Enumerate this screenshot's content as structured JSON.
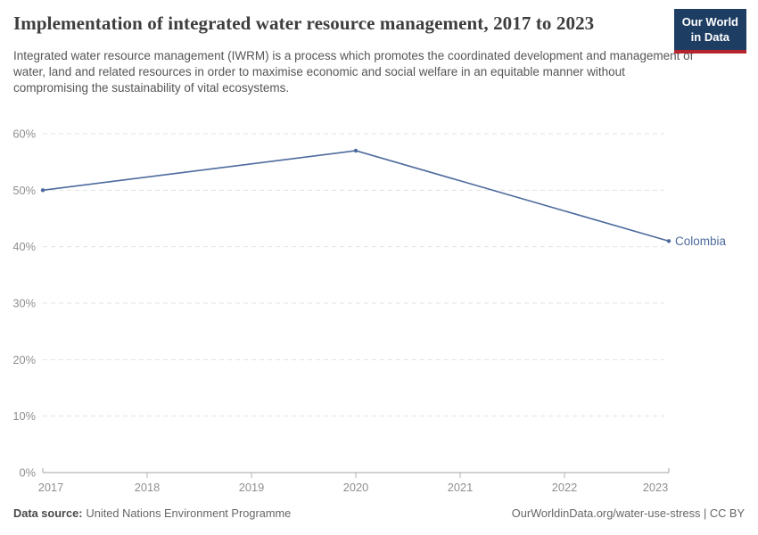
{
  "header": {
    "title": "Implementation of integrated water resource management, 2017 to 2023",
    "subtitle": "Integrated water resource management (IWRM) is a process which promotes the coordinated development and management of water, land and related resources in order to maximise economic and social welfare in an equitable manner without compromising the sustainability of vital ecosystems.",
    "logo": {
      "line1": "Our World",
      "line2": "in Data",
      "bg_color": "#1d3d63",
      "accent_color": "#b5232d"
    }
  },
  "chart_data": {
    "type": "line",
    "title": "Implementation of integrated water resource management, 2017 to 2023",
    "x": [
      2017,
      2020,
      2023
    ],
    "series": [
      {
        "name": "Colombia",
        "values": [
          50,
          57,
          41
        ],
        "color": "#4c6a9c"
      }
    ],
    "unit": "%",
    "xlim": [
      2017,
      2023
    ],
    "ylim": [
      0,
      60
    ],
    "x_ticks": [
      2017,
      2018,
      2019,
      2020,
      2021,
      2022,
      2023
    ],
    "y_gridlines": [
      0,
      10,
      20,
      30,
      40,
      50,
      60
    ],
    "grid": "horizontal dashed",
    "legend_position": "end-of-line label"
  },
  "footer": {
    "datasource_label": "Data source:",
    "datasource_value": "United Nations Environment Programme",
    "link": "OurWorldinData.org/water-use-stress | CC BY"
  }
}
